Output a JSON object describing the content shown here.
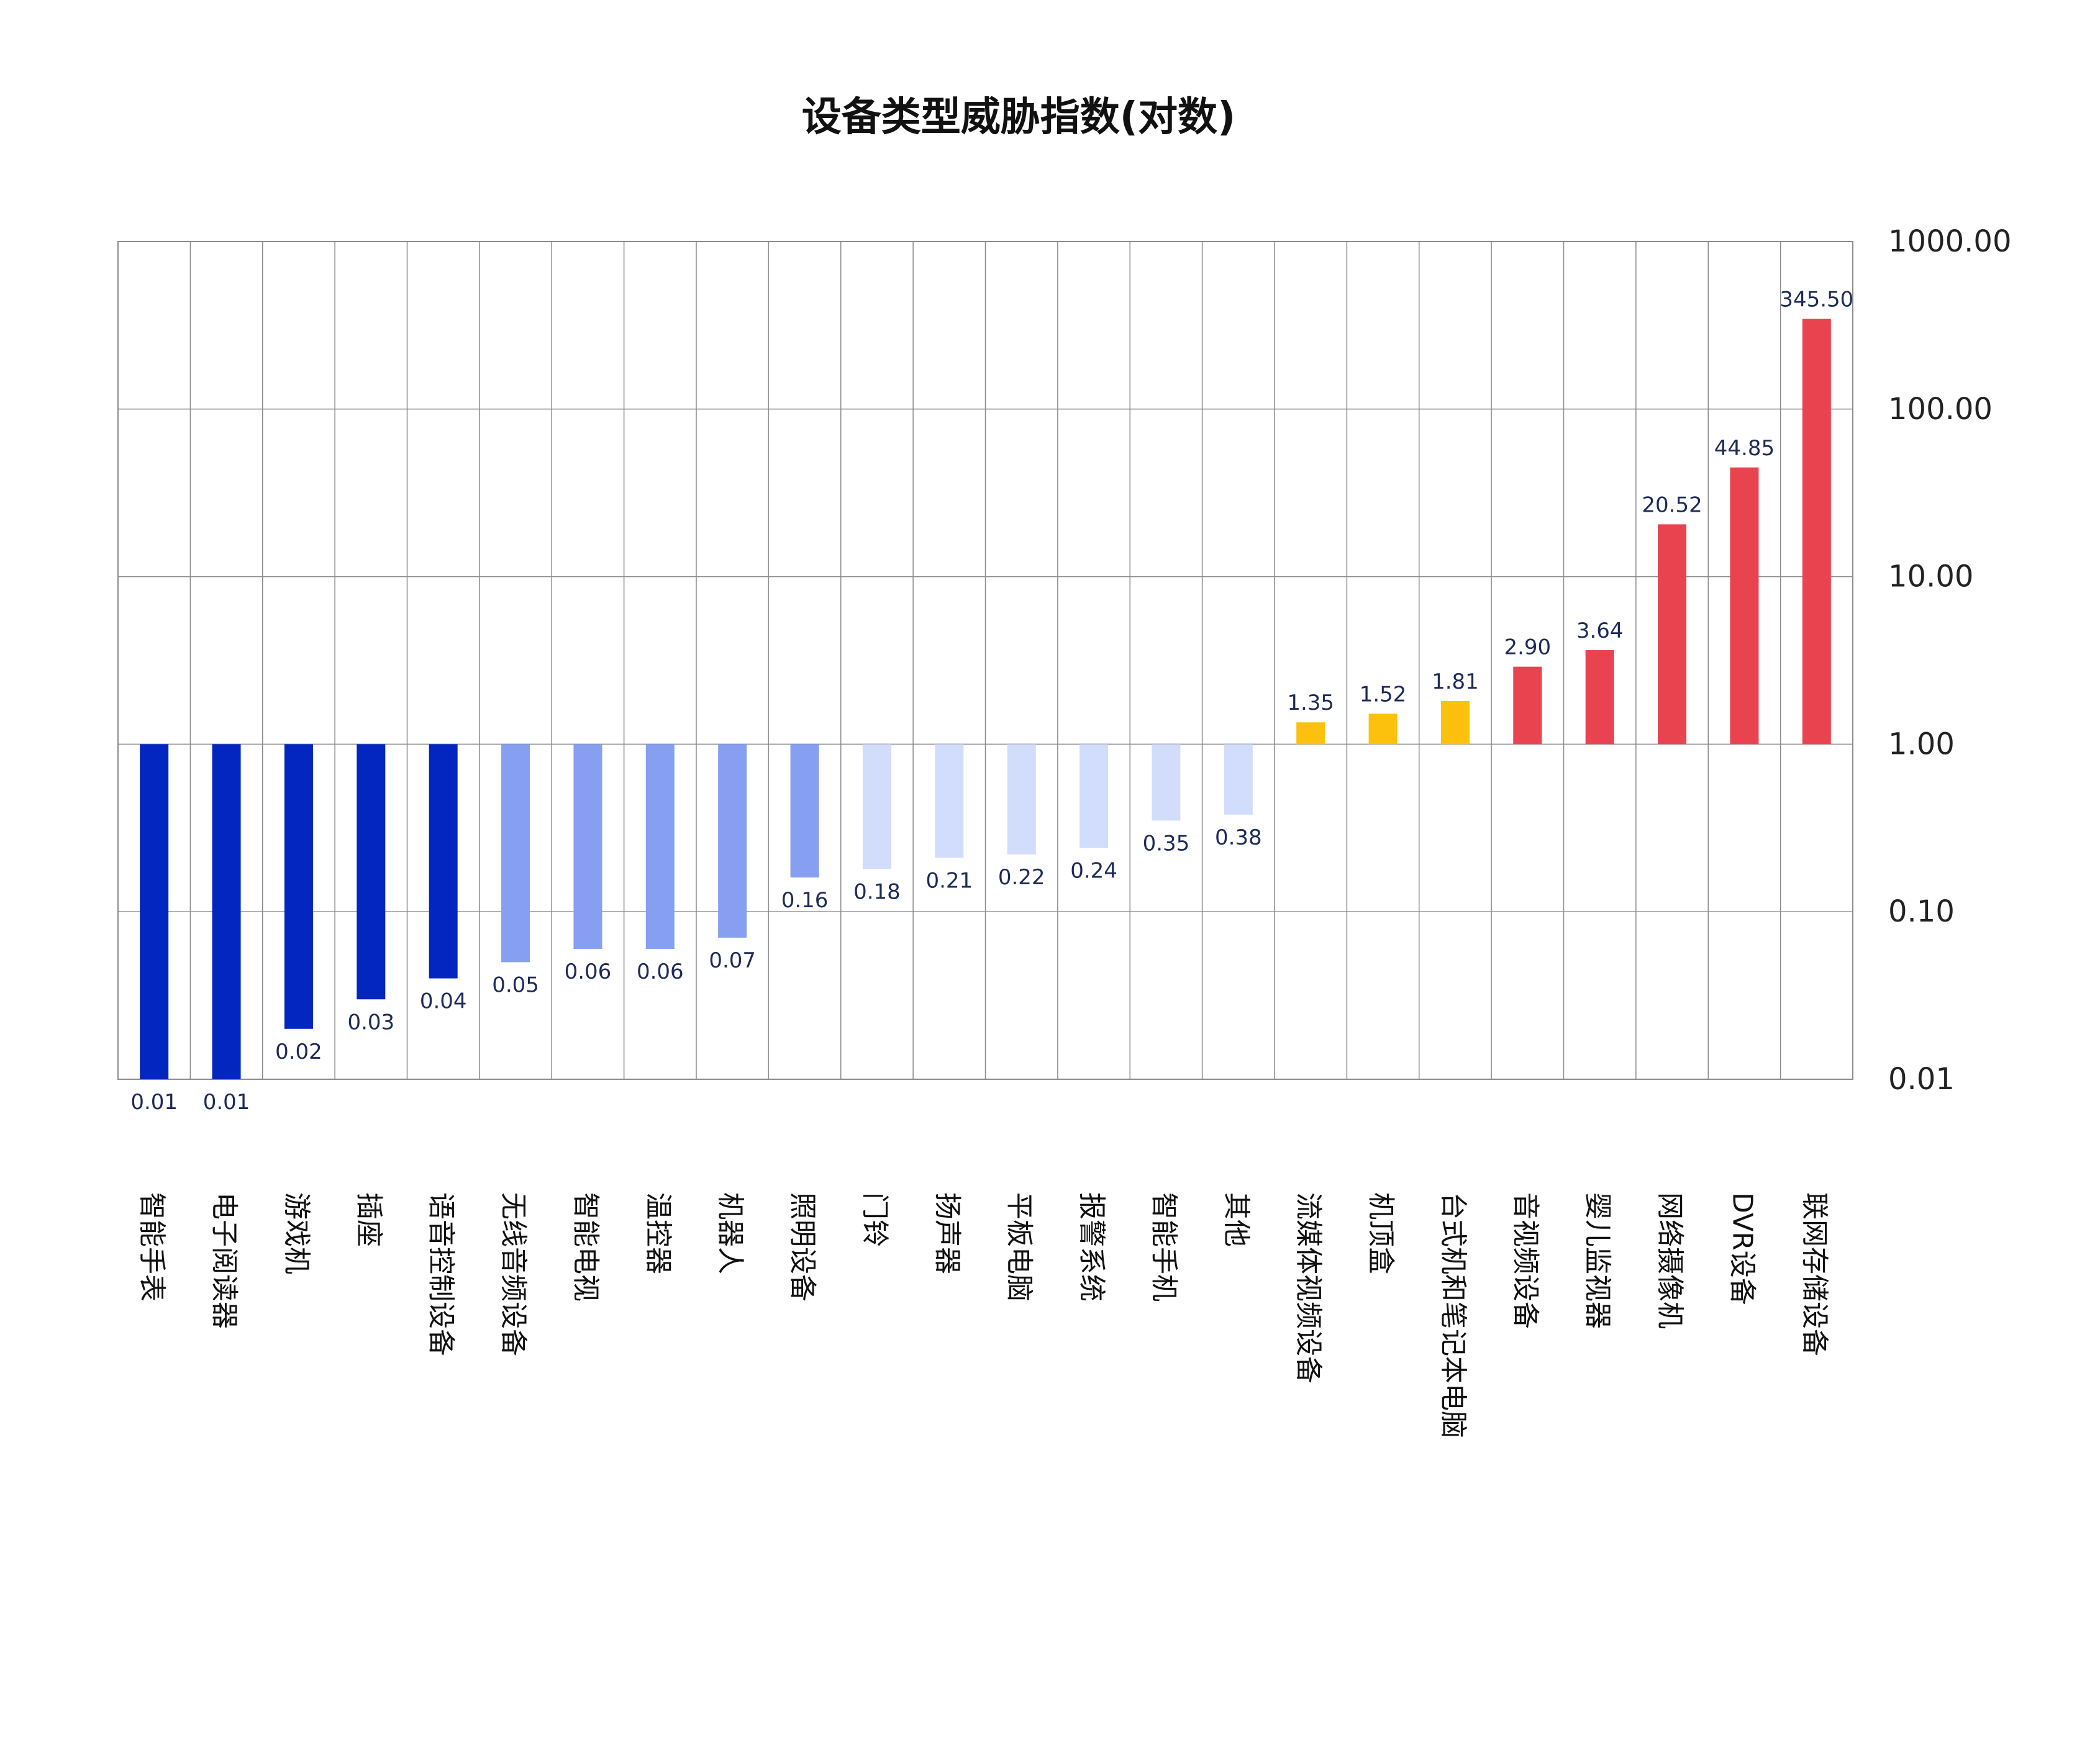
{
  "chart_data": {
    "type": "bar",
    "title": "设备类型威胁指数(对数)",
    "xlabel": "",
    "ylabel": "",
    "scale": "log",
    "baseline": 1,
    "ylim": [
      0.01,
      1000
    ],
    "yticks": [
      "1000.00",
      "100.00",
      "10.00",
      "1.00",
      "0.10",
      "0.01"
    ],
    "grid": true,
    "legend": "none",
    "categories": [
      "智能手表",
      "电子阅读器",
      "游戏机",
      "插座",
      "语音控制设备",
      "无线音频设备",
      "智能电视",
      "温控器",
      "机器人",
      "照明设备",
      "门铃",
      "扬声器",
      "平板电脑",
      "报警系统",
      "智能手机",
      "其他",
      "流媒体视频设备",
      "机顶盒",
      "台式机和笔记本电脑",
      "音视频设备",
      "婴儿监视器",
      "网络摄像机",
      "DVR设备",
      "联网存储设备"
    ],
    "values": [
      0.01,
      0.01,
      0.02,
      0.03,
      0.04,
      0.05,
      0.06,
      0.06,
      0.07,
      0.16,
      0.18,
      0.21,
      0.22,
      0.24,
      0.35,
      0.38,
      1.35,
      1.52,
      1.81,
      2.9,
      3.64,
      20.52,
      44.85,
      345.5
    ],
    "value_labels": [
      "0.01",
      "0.01",
      "0.02",
      "0.03",
      "0.04",
      "0.05",
      "0.06",
      "0.06",
      "0.07",
      "0.16",
      "0.18",
      "0.21",
      "0.22",
      "0.24",
      "0.35",
      "0.38",
      "1.35",
      "1.52",
      "1.81",
      "2.90",
      "3.64",
      "20.52",
      "44.85",
      "345.50"
    ],
    "colors": {
      "very_low": "#0426c0",
      "low": "#869ff0",
      "below_one": "#d2dcfb",
      "moderate": "#fcc10c",
      "high": "#e8434f",
      "grid": "#8c8c8c"
    }
  }
}
